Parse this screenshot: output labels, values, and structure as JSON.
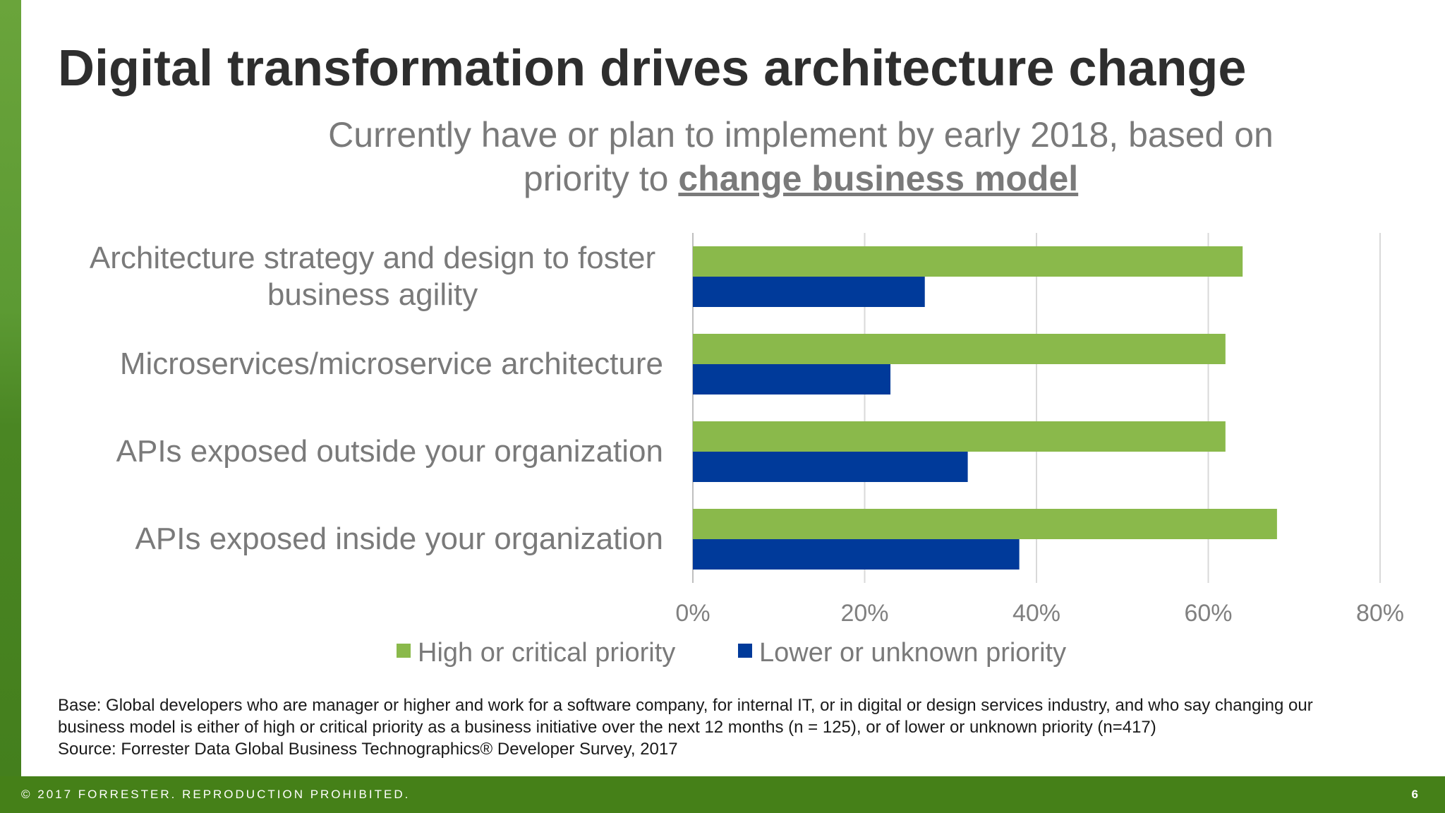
{
  "slide": {
    "title": "Digital transformation drives architecture change",
    "subtitle_line1": "Currently have or plan to implement by early 2018, based on",
    "subtitle_line2_prefix": "priority to ",
    "subtitle_emphasis": "change business model",
    "notes": [
      "Base: Global developers who are manager or higher and work for a software company, for internal IT, or in digital or design services industry, and who say changing our",
      "business model is either of high or critical priority as a business initiative over the next 12 months (n = 125), or of lower or unknown priority (n=417)",
      "Source: Forrester Data Global Business Technographics® Developer Survey, 2017"
    ],
    "footer": "© 2017 FORRESTER. REPRODUCTION PROHIBITED.",
    "page_number": "6"
  },
  "chart_data": {
    "type": "bar",
    "orientation": "horizontal",
    "categories": [
      [
        "Architecture strategy and design to foster",
        "business agility"
      ],
      [
        "Microservices/microservice architecture"
      ],
      [
        "APIs exposed outside your organization"
      ],
      [
        "APIs exposed inside your organization"
      ]
    ],
    "series": [
      {
        "name": "High or critical priority",
        "color": "#8ab94b",
        "values": [
          64,
          62,
          62,
          68
        ]
      },
      {
        "name": "Lower or unknown priority",
        "color": "#003a9a",
        "values": [
          27,
          23,
          32,
          38
        ]
      }
    ],
    "xlim": [
      0,
      80
    ],
    "xticks": [
      0,
      20,
      40,
      60,
      80
    ],
    "tick_format": "%",
    "grid": true,
    "legend": "bottom"
  }
}
